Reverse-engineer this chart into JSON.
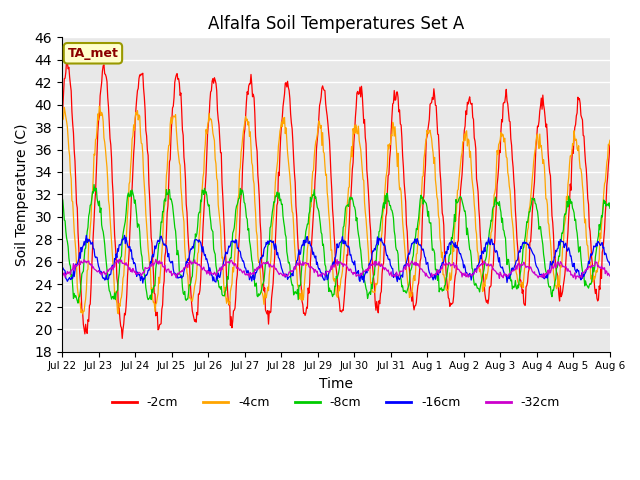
{
  "title": "Alfalfa Soil Temperatures Set A",
  "xlabel": "Time",
  "ylabel": "Soil Temperature (C)",
  "ylim": [
    18,
    46
  ],
  "yticks": [
    18,
    20,
    22,
    24,
    26,
    28,
    30,
    32,
    34,
    36,
    38,
    40,
    42,
    44,
    46
  ],
  "x_tick_labels": [
    "Jul 22",
    "Jul 23",
    "Jul 24",
    "Jul 25",
    "Jul 26",
    "Jul 27",
    "Jul 28",
    "Jul 29",
    "Jul 30",
    "Jul 31",
    "Aug 1",
    "Aug 2",
    "Aug 3",
    "Aug 4",
    "Aug 5",
    "Aug 6"
  ],
  "series_colors": [
    "#ff0000",
    "#ffa500",
    "#00cc00",
    "#0000ff",
    "#cc00cc"
  ],
  "series_labels": [
    "-2cm",
    "-4cm",
    "-8cm",
    "-16cm",
    "-32cm"
  ],
  "annotation_text": "TA_met",
  "background_color": "#e8e8e8",
  "n_days": 15,
  "pts_per_day": 48
}
